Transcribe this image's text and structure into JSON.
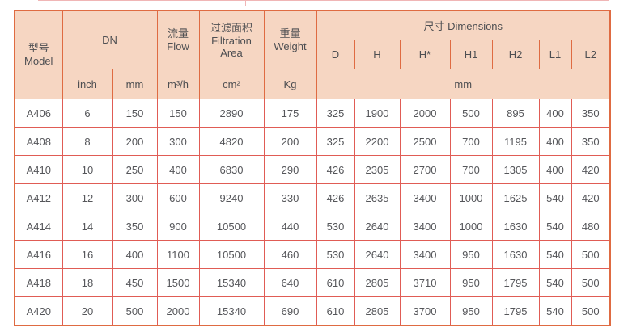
{
  "header": {
    "model": {
      "zh": "型号",
      "en": "Model"
    },
    "dn": {
      "label": "DN",
      "sub": [
        "inch",
        "mm"
      ]
    },
    "flow": {
      "zh": "流量",
      "en": "Flow",
      "unit": "m³/h"
    },
    "area": {
      "zh": "过滤面积",
      "en": "Filtration Area",
      "unit": "cm²"
    },
    "weight": {
      "zh": "重量",
      "en": "Weight",
      "unit": "Kg"
    },
    "dimensions": {
      "zh": "尺寸",
      "en": "Dimensions",
      "sub": [
        "D",
        "H",
        "H*",
        "H1",
        "H2",
        "L1",
        "L2"
      ],
      "unit": "mm"
    }
  },
  "rows": [
    {
      "cells": [
        "A406",
        "6",
        "150",
        "150",
        "2890",
        "175",
        "325",
        "1900",
        "2000",
        "500",
        "895",
        "400",
        "350"
      ]
    },
    {
      "cells": [
        "A408",
        "8",
        "200",
        "300",
        "4820",
        "200",
        "325",
        "2200",
        "2500",
        "700",
        "1195",
        "400",
        "350"
      ]
    },
    {
      "cells": [
        "A410",
        "10",
        "250",
        "400",
        "6830",
        "290",
        "426",
        "2305",
        "2700",
        "700",
        "1305",
        "400",
        "420"
      ]
    },
    {
      "cells": [
        "A412",
        "12",
        "300",
        "600",
        "9240",
        "330",
        "426",
        "2635",
        "3400",
        "1000",
        "1625",
        "540",
        "420"
      ]
    },
    {
      "cells": [
        "A414",
        "14",
        "350",
        "900",
        "10500",
        "440",
        "530",
        "2640",
        "3400",
        "1000",
        "1630",
        "540",
        "480"
      ]
    },
    {
      "cells": [
        "A416",
        "16",
        "400",
        "1100",
        "10500",
        "460",
        "530",
        "2640",
        "3400",
        "950",
        "1630",
        "540",
        "500"
      ]
    },
    {
      "cells": [
        "A418",
        "18",
        "450",
        "1500",
        "15340",
        "640",
        "610",
        "2805",
        "3710",
        "950",
        "1795",
        "540",
        "500"
      ]
    },
    {
      "cells": [
        "A420",
        "20",
        "500",
        "2000",
        "15340",
        "690",
        "610",
        "2805",
        "3700",
        "950",
        "1795",
        "540",
        "500"
      ]
    }
  ],
  "colors": {
    "header_bg": "#f6d6c2",
    "header_border": "#df6b42",
    "data_border": "#e05c55",
    "remnant_border": "#f0b6b6",
    "text": "#55565a"
  }
}
